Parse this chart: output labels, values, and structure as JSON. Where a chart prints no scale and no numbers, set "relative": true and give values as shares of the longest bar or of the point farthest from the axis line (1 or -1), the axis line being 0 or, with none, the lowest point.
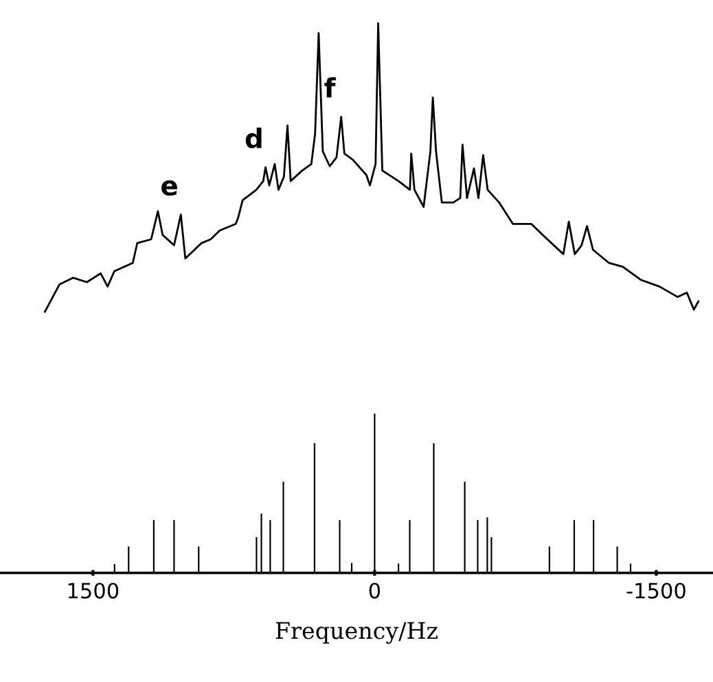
{
  "chart_data": {
    "type": "line",
    "relative": true,
    "xlabel": "Frequency/Hz",
    "xlim": [
      1995,
      -1802
    ],
    "xticks": [
      1500,
      0,
      -1500
    ],
    "grid": false,
    "legend": false,
    "annotations": [
      {
        "text": "e",
        "x": 1032,
        "y": 0.652
      },
      {
        "text": "d",
        "x": 581,
        "y": 0.738
      },
      {
        "text": "f",
        "x": 178,
        "y": 0.83
      }
    ],
    "series": [
      {
        "color": "#000000",
        "x": [
          1756,
          1678,
          1605,
          1532,
          1459,
          1422,
          1386,
          1288,
          1264,
          1190,
          1154,
          1129,
          1068,
          1032,
          1008,
          922,
          873,
          825,
          739,
          727,
          703,
          630,
          593,
          581,
          561,
          532,
          512,
          483,
          464,
          447,
          386,
          337,
          317,
          298,
          276,
          239,
          203,
          178,
          161,
          117,
          44,
          25,
          -5,
          -19,
          -41,
          -127,
          -188,
          -195,
          -212,
          -261,
          -297,
          -310,
          -327,
          -358,
          -419,
          -456,
          -468,
          -492,
          -529,
          -553,
          -578,
          -602,
          -663,
          -736,
          -834,
          -907,
          -1005,
          -1034,
          -1066,
          -1102,
          -1131,
          -1163,
          -1248,
          -1322,
          -1419,
          -1517,
          -1614,
          -1663,
          -1700,
          -1724
        ],
        "values": [
          0.475,
          0.525,
          0.537,
          0.529,
          0.545,
          0.521,
          0.549,
          0.564,
          0.6,
          0.607,
          0.658,
          0.615,
          0.596,
          0.652,
          0.572,
          0.6,
          0.607,
          0.623,
          0.635,
          0.646,
          0.678,
          0.697,
          0.713,
          0.738,
          0.705,
          0.744,
          0.697,
          0.721,
          0.814,
          0.713,
          0.732,
          0.744,
          0.799,
          0.982,
          0.767,
          0.74,
          0.756,
          0.83,
          0.763,
          0.752,
          0.724,
          0.705,
          0.744,
          1.0,
          0.732,
          0.713,
          0.697,
          0.763,
          0.697,
          0.666,
          0.767,
          0.865,
          0.767,
          0.674,
          0.674,
          0.682,
          0.779,
          0.682,
          0.736,
          0.682,
          0.76,
          0.697,
          0.674,
          0.635,
          0.635,
          0.611,
          0.58,
          0.639,
          0.58,
          0.596,
          0.631,
          0.588,
          0.564,
          0.557,
          0.533,
          0.521,
          0.502,
          0.51,
          0.479,
          0.494
        ]
      },
      {
        "type": "bar",
        "color": "#000000",
        "x": [
          1385,
          1310,
          1176,
          1068,
          937,
          629,
          603,
          556,
          486,
          320,
          186,
          122,
          0,
          -127,
          -187,
          -315,
          -480,
          -549,
          -600,
          -622,
          -931,
          -1063,
          -1166,
          -1292,
          -1363
        ],
        "values": [
          0.016,
          0.048,
          0.096,
          0.096,
          0.048,
          0.065,
          0.108,
          0.096,
          0.166,
          0.236,
          0.096,
          0.018,
          0.29,
          0.017,
          0.096,
          0.236,
          0.166,
          0.096,
          0.101,
          0.065,
          0.048,
          0.096,
          0.096,
          0.048,
          0.017
        ]
      }
    ]
  }
}
